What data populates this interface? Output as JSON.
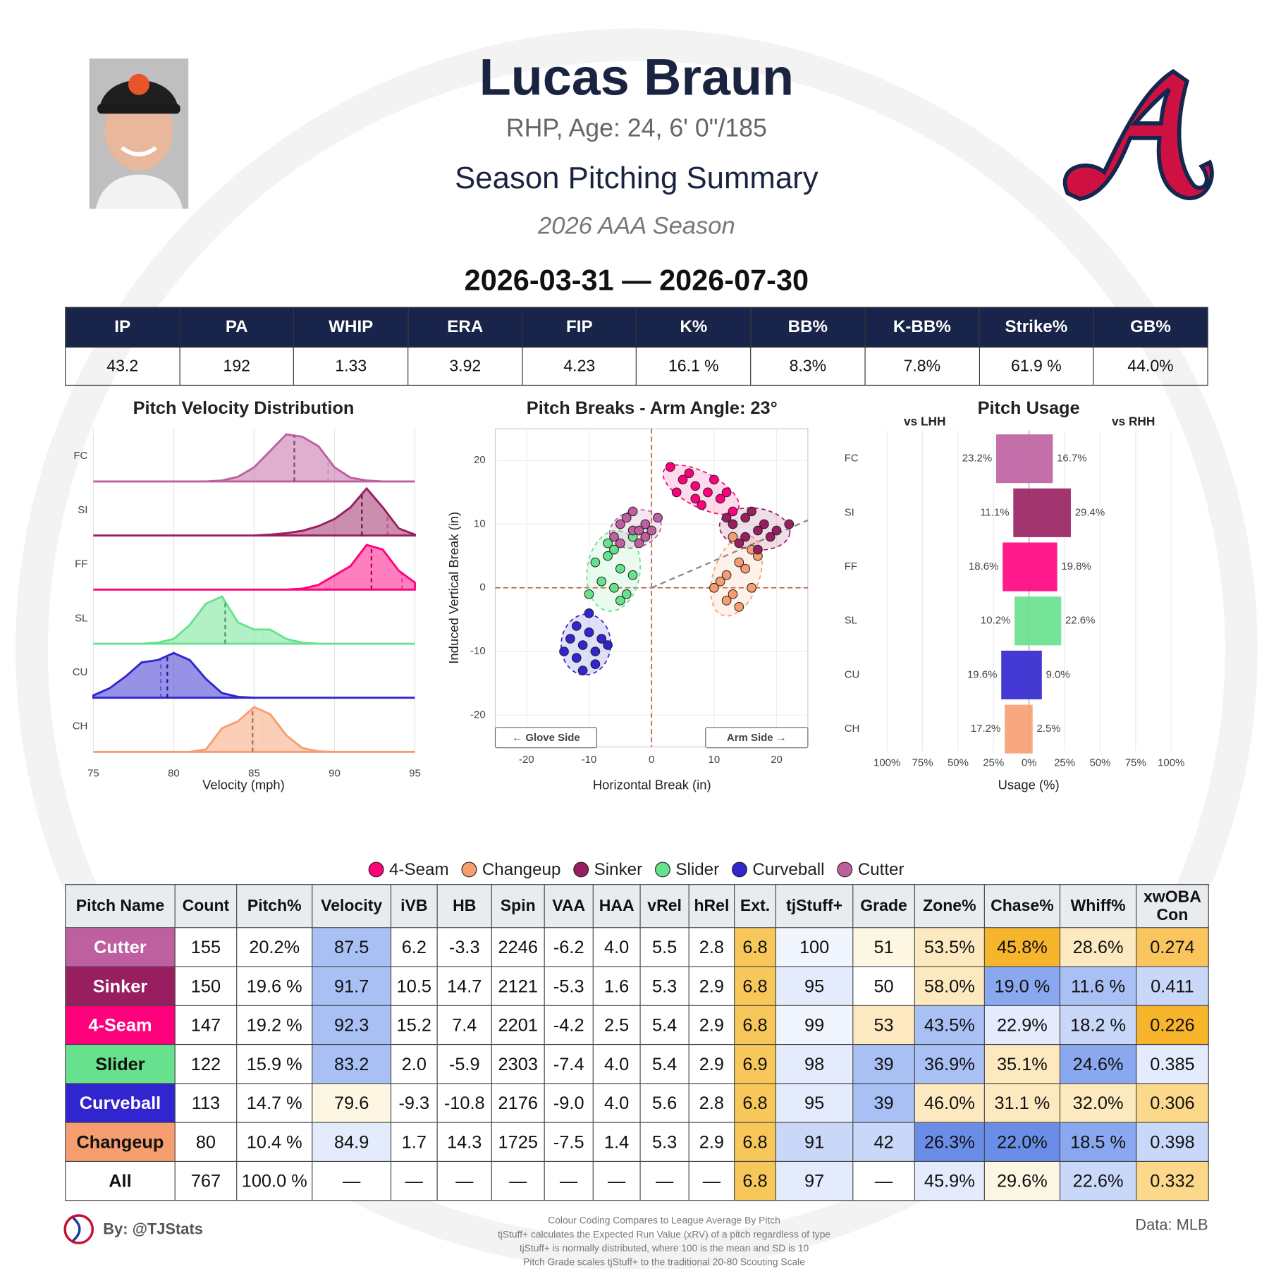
{
  "header": {
    "name": "Lucas Braun",
    "bio": "RHP, Age: 24, 6' 0\"/185",
    "title": "Season Pitching Summary",
    "season": "2026 AAA Season",
    "date_range": "2026-03-31 — 2026-07-30"
  },
  "stats_table": {
    "columns": [
      "IP",
      "PA",
      "WHIP",
      "ERA",
      "FIP",
      "K%",
      "BB%",
      "K-BB%",
      "Strike%",
      "GB%"
    ],
    "rows": [
      [
        "43.2",
        "192",
        "1.33",
        "3.92",
        "4.23",
        "16.1 %",
        "8.3%",
        "7.8%",
        "61.9 %",
        "44.0%"
      ]
    ]
  },
  "chart_data": [
    {
      "type": "ridgeline",
      "title": "Pitch Velocity Distribution",
      "x_label": "Velocity (mph)",
      "categories": [
        "FC",
        "SI",
        "FF",
        "SL",
        "CU",
        "CH"
      ],
      "x": [
        75,
        76,
        77,
        78,
        79,
        80,
        81,
        82,
        83,
        84,
        85,
        86,
        87,
        88,
        89,
        90,
        91,
        92,
        93,
        94,
        95
      ],
      "xlim": [
        75,
        95
      ],
      "xticks": [
        75,
        80,
        85,
        90,
        95
      ],
      "grid": true,
      "series": [
        {
          "color": "#be5fa0",
          "values": [
            0,
            0,
            0,
            0,
            0,
            0,
            0,
            0,
            0.02,
            0.1,
            0.3,
            0.65,
            1.0,
            0.95,
            0.75,
            0.3,
            0.08,
            0.02,
            0,
            0,
            0
          ],
          "vlines": [
            87.5,
            89.6
          ]
        },
        {
          "color": "#981e5f",
          "values": [
            0,
            0,
            0,
            0,
            0,
            0,
            0,
            0,
            0,
            0,
            0,
            0.02,
            0.05,
            0.1,
            0.2,
            0.35,
            0.6,
            1.0,
            0.6,
            0.15,
            0.02
          ],
          "vlines": [
            91.7,
            93.3
          ]
        },
        {
          "color": "#ff007d",
          "values": [
            0,
            0,
            0,
            0,
            0,
            0,
            0,
            0,
            0,
            0,
            0,
            0,
            0,
            0.02,
            0.1,
            0.3,
            0.5,
            0.95,
            0.85,
            0.4,
            0.15
          ],
          "vlines": [
            92.3,
            94.2
          ]
        },
        {
          "color": "#67e18d",
          "values": [
            0,
            0,
            0,
            0,
            0.02,
            0.1,
            0.4,
            0.85,
            1.0,
            0.45,
            0.3,
            0.3,
            0.1,
            0.02,
            0,
            0,
            0,
            0,
            0,
            0,
            0
          ],
          "vlines": [
            83.2,
            85.6
          ]
        },
        {
          "color": "#3025ce",
          "values": [
            0.05,
            0.2,
            0.45,
            0.75,
            0.8,
            0.95,
            0.8,
            0.4,
            0.1,
            0.02,
            0,
            0,
            0,
            0,
            0,
            0,
            0,
            0,
            0,
            0,
            0
          ],
          "vlines": [
            79.6,
            79.2
          ]
        },
        {
          "color": "#f79e70",
          "values": [
            0,
            0,
            0,
            0,
            0,
            0,
            0,
            0.05,
            0.5,
            0.65,
            0.95,
            0.8,
            0.35,
            0.08,
            0.01,
            0,
            0,
            0,
            0,
            0,
            0
          ],
          "vlines": [
            84.9,
            85.5
          ]
        }
      ]
    },
    {
      "type": "scatter",
      "title": "Pitch Breaks - Arm Angle: 23°",
      "arm_angle": 23,
      "x_label": "Horizontal Break (in)",
      "y_label": "Induced Vertical Break (in)",
      "xlim": [
        -25,
        25
      ],
      "ylim": [
        -25,
        25
      ],
      "xticks": [
        -20,
        -10,
        0,
        10,
        20
      ],
      "yticks": [
        -20,
        -10,
        0,
        10,
        20
      ],
      "grid": true,
      "annotations": [
        "← Glove Side",
        "Arm Side →"
      ],
      "series": [
        {
          "name": "4-Seam",
          "color": "#ff007d",
          "x": [
            3,
            5,
            7,
            9,
            11,
            6,
            8,
            13,
            4,
            10,
            12,
            7
          ],
          "values": [
            19,
            17,
            16,
            15,
            14,
            18,
            13,
            12,
            15,
            17,
            15,
            14
          ]
        },
        {
          "name": "Changeup",
          "color": "#f79e70",
          "x": [
            10,
            12,
            14,
            16,
            13,
            15,
            11,
            17,
            14,
            12,
            16,
            13
          ],
          "values": [
            0,
            2,
            4,
            6,
            -1,
            3,
            1,
            5,
            -3,
            -2,
            0,
            8
          ]
        },
        {
          "name": "Sinker",
          "color": "#981e5f",
          "x": [
            13,
            15,
            17,
            19,
            16,
            14,
            18,
            20,
            15,
            17,
            12,
            22
          ],
          "values": [
            10,
            11,
            9,
            8,
            12,
            7,
            10,
            9,
            8,
            6,
            11,
            10
          ]
        },
        {
          "name": "Slider",
          "color": "#67e18d",
          "x": [
            -9,
            -7,
            -5,
            -3,
            -6,
            -8,
            -4,
            -6,
            -10,
            -5,
            -7,
            -3
          ],
          "values": [
            4,
            5,
            3,
            2,
            0,
            1,
            -1,
            6,
            -1,
            -2,
            7,
            8
          ]
        },
        {
          "name": "Curveball",
          "color": "#3025ce",
          "x": [
            -13,
            -11,
            -9,
            -12,
            -10,
            -8,
            -14,
            -11,
            -9,
            -12,
            -7,
            -10
          ],
          "values": [
            -8,
            -9,
            -10,
            -11,
            -7,
            -8,
            -10,
            -13,
            -12,
            -6,
            -9,
            -4
          ]
        },
        {
          "name": "Cutter",
          "color": "#be5fa0",
          "x": [
            -5,
            -3,
            -1,
            -4,
            -2,
            -6,
            -3,
            -1,
            1,
            -5,
            -2,
            0
          ],
          "values": [
            10,
            9,
            8,
            11,
            7,
            8,
            12,
            10,
            11,
            7,
            9,
            9
          ]
        }
      ]
    },
    {
      "type": "diverging_bar",
      "title": "Pitch Usage",
      "x_label": "Usage (%)",
      "categories": [
        "FC",
        "SI",
        "FF",
        "SL",
        "CU",
        "CH"
      ],
      "colors": [
        "#be5fa0",
        "#981e5f",
        "#ff007d",
        "#67e18d",
        "#3025ce",
        "#f79e70"
      ],
      "xlim": [
        -110,
        110
      ],
      "grid": true,
      "xticks": [
        {
          "value": -100,
          "label": "100%"
        },
        {
          "value": -75,
          "label": "75%"
        },
        {
          "value": -50,
          "label": "50%"
        },
        {
          "value": -25,
          "label": "25%"
        },
        {
          "value": 0,
          "label": "0%"
        },
        {
          "value": 25,
          "label": "25%"
        },
        {
          "value": 50,
          "label": "50%"
        },
        {
          "value": 75,
          "label": "75%"
        },
        {
          "value": 100,
          "label": "100%"
        }
      ],
      "series": [
        {
          "name": "vs LHH",
          "side": "left",
          "values": [
            23.2,
            11.1,
            18.6,
            10.2,
            19.6,
            17.2
          ],
          "value_labels": [
            "23.2%",
            "11.1%",
            "18.6%",
            "10.2%",
            "19.6%",
            "17.2%"
          ]
        },
        {
          "name": "vs RHH",
          "side": "right",
          "values": [
            16.7,
            29.4,
            19.8,
            22.6,
            9.0,
            2.5
          ],
          "value_labels": [
            "16.7%",
            "29.4%",
            "19.8%",
            "22.6%",
            "9.0%",
            "2.5%"
          ]
        }
      ]
    }
  ],
  "pitch_table": {
    "columns": [
      "Pitch Name",
      "Count",
      "Pitch%",
      "Velocity",
      "iVB",
      "HB",
      "Spin",
      "VAA",
      "HAA",
      "vRel",
      "hRel",
      "Ext.",
      "tjStuff+",
      "Grade",
      "Zone%",
      "Chase%",
      "Whiff%",
      "xwOBA Con"
    ],
    "rows": [
      {
        "name_color": "#ffffff",
        "cells": [
          "Cutter",
          "155",
          "20.2%",
          "87.5",
          "6.2",
          "-3.3",
          "2246",
          "-6.2",
          "4.0",
          "5.5",
          "2.8",
          "6.8",
          "100",
          "51",
          "53.5%",
          "45.8%",
          "28.6%",
          "0.274"
        ],
        "colors": [
          "#be5fa0",
          "#ffffff",
          "#ffffff",
          "#a9c0f5",
          "#ffffff",
          "#ffffff",
          "#ffffff",
          "#ffffff",
          "#ffffff",
          "#ffffff",
          "#ffffff",
          "#f7c75a",
          "#f1f5fe",
          "#fdf6e3",
          "#fde9bf",
          "#f7b52c",
          "#fde9bf",
          "#f9c55c"
        ]
      },
      {
        "name_color": "#ffffff",
        "cells": [
          "Sinker",
          "150",
          "19.6 %",
          "91.7",
          "10.5",
          "14.7",
          "2121",
          "-5.3",
          "1.6",
          "5.3",
          "2.9",
          "6.8",
          "95",
          "50",
          "58.0%",
          "19.0 %",
          "11.6 %",
          "0.411"
        ],
        "colors": [
          "#981e5f",
          "#ffffff",
          "#ffffff",
          "#a9c0f5",
          "#ffffff",
          "#ffffff",
          "#ffffff",
          "#ffffff",
          "#ffffff",
          "#ffffff",
          "#ffffff",
          "#f7c75a",
          "#e3ebfc",
          "#ffffff",
          "#fde9bf",
          "#8aa8f0",
          "#a9c0f5",
          "#c9d7f8"
        ]
      },
      {
        "name_color": "#ffffff",
        "cells": [
          "4-Seam",
          "147",
          "19.2 %",
          "92.3",
          "15.2",
          "7.4",
          "2201",
          "-4.2",
          "2.5",
          "5.4",
          "2.9",
          "6.8",
          "99",
          "53",
          "43.5%",
          "22.9%",
          "18.2 %",
          "0.226"
        ],
        "colors": [
          "#ff007d",
          "#ffffff",
          "#ffffff",
          "#a9c0f5",
          "#ffffff",
          "#ffffff",
          "#ffffff",
          "#ffffff",
          "#ffffff",
          "#ffffff",
          "#ffffff",
          "#f7c75a",
          "#f1f5fe",
          "#fde9bf",
          "#a9c0f5",
          "#e3ebfc",
          "#c9d7f8",
          "#f7b52c"
        ]
      },
      {
        "name_color": "#111111",
        "cells": [
          "Slider",
          "122",
          "15.9 %",
          "83.2",
          "2.0",
          "-5.9",
          "2303",
          "-7.4",
          "4.0",
          "5.4",
          "2.9",
          "6.9",
          "98",
          "39",
          "36.9%",
          "35.1%",
          "24.6%",
          "0.385"
        ],
        "colors": [
          "#67e18d",
          "#ffffff",
          "#ffffff",
          "#a9c0f5",
          "#ffffff",
          "#ffffff",
          "#ffffff",
          "#ffffff",
          "#ffffff",
          "#ffffff",
          "#ffffff",
          "#f7c75a",
          "#e3ebfc",
          "#a9c0f5",
          "#a9c0f5",
          "#fde9bf",
          "#8aa8f0",
          "#e3ebfc"
        ]
      },
      {
        "name_color": "#ffffff",
        "cells": [
          "Curveball",
          "113",
          "14.7 %",
          "79.6",
          "-9.3",
          "-10.8",
          "2176",
          "-9.0",
          "4.0",
          "5.6",
          "2.8",
          "6.8",
          "95",
          "39",
          "46.0%",
          "31.1 %",
          "32.0%",
          "0.306"
        ],
        "colors": [
          "#3025ce",
          "#ffffff",
          "#ffffff",
          "#fdf6e3",
          "#ffffff",
          "#ffffff",
          "#ffffff",
          "#ffffff",
          "#ffffff",
          "#ffffff",
          "#ffffff",
          "#f7c75a",
          "#e3ebfc",
          "#a9c0f5",
          "#fde9bf",
          "#fde9bf",
          "#fde9bf",
          "#fbd88a"
        ]
      },
      {
        "name_color": "#111111",
        "cells": [
          "Changeup",
          "80",
          "10.4 %",
          "84.9",
          "1.7",
          "14.3",
          "1725",
          "-7.5",
          "1.4",
          "5.3",
          "2.9",
          "6.8",
          "91",
          "42",
          "26.3%",
          "22.0%",
          "18.5 %",
          "0.398"
        ],
        "colors": [
          "#f79e70",
          "#ffffff",
          "#ffffff",
          "#e3ebfc",
          "#ffffff",
          "#ffffff",
          "#ffffff",
          "#ffffff",
          "#ffffff",
          "#ffffff",
          "#ffffff",
          "#f7c75a",
          "#c9d7f8",
          "#c9d7f8",
          "#6a8ee8",
          "#6a8ee8",
          "#8aa8f0",
          "#c9d7f8"
        ]
      },
      {
        "name_color": "#111111",
        "cells": [
          "All",
          "767",
          "100.0 %",
          "—",
          "—",
          "—",
          "—",
          "—",
          "—",
          "—",
          "—",
          "6.8",
          "97",
          "—",
          "45.9%",
          "29.6%",
          "22.6%",
          "0.332"
        ],
        "colors": [
          "#ffffff",
          "#ffffff",
          "#ffffff",
          "#ffffff",
          "#ffffff",
          "#ffffff",
          "#ffffff",
          "#ffffff",
          "#ffffff",
          "#ffffff",
          "#ffffff",
          "#f7c75a",
          "#e3ebfc",
          "#ffffff",
          "#e3ebfc",
          "#fdf6e3",
          "#c9d7f8",
          "#fbd88a"
        ]
      }
    ]
  },
  "footer": {
    "credit": "By: @TJStats",
    "source": "Data: MLB",
    "notes": [
      "Colour Coding Compares to League Average By Pitch",
      "tjStuff+ calculates the Expected Run Value (xRV) of a pitch regardless of type",
      "tjStuff+ is normally distributed, where 100 is the mean and SD is 10",
      "Pitch Grade scales tjStuff+ to the traditional 20-80 Scouting Scale"
    ]
  }
}
